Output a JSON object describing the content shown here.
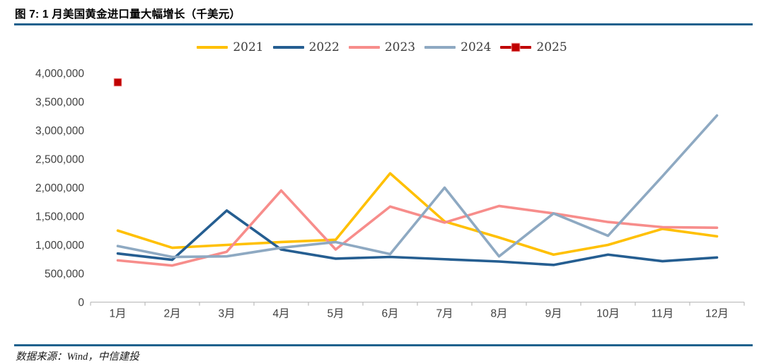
{
  "header": {
    "title": "图 7: 1 月美国黄金进口量大幅增长（千美元）"
  },
  "footer": {
    "source": "数据来源：Wind，中信建投"
  },
  "colors": {
    "rule_blue": "#1F618D",
    "axis_line": "#BFBFBF",
    "axis_text": "#404040"
  },
  "chart_data": {
    "type": "line",
    "title": "图 7: 1 月美国黄金进口量大幅增长（千美元）",
    "unit": "千美元",
    "grid": false,
    "legend_position": "top",
    "xlabel": "",
    "ylabel": "",
    "ylim": [
      0,
      4000000
    ],
    "y_tick_step": 500000,
    "y_tick_labels": [
      "0",
      "500,000",
      "1,000,000",
      "1,500,000",
      "2,000,000",
      "2,500,000",
      "3,000,000",
      "3,500,000",
      "4,000,000"
    ],
    "categories": [
      "1月",
      "2月",
      "3月",
      "4月",
      "5月",
      "6月",
      "7月",
      "8月",
      "9月",
      "10月",
      "11月",
      "12月"
    ],
    "series": [
      {
        "name": "2021",
        "color": "#FFC000",
        "marker": "none",
        "values": [
          1250000,
          950000,
          1000000,
          1050000,
          1090000,
          2250000,
          1410000,
          1130000,
          830000,
          1000000,
          1280000,
          1150000
        ]
      },
      {
        "name": "2022",
        "color": "#255E91",
        "marker": "none",
        "values": [
          850000,
          740000,
          1600000,
          920000,
          760000,
          790000,
          750000,
          710000,
          650000,
          830000,
          715000,
          780000
        ]
      },
      {
        "name": "2023",
        "color": "#F78D8B",
        "marker": "none",
        "values": [
          730000,
          640000,
          880000,
          1950000,
          920000,
          1670000,
          1390000,
          1680000,
          1550000,
          1400000,
          1310000,
          1300000
        ]
      },
      {
        "name": "2024",
        "color": "#8EA9C2",
        "marker": "none",
        "values": [
          980000,
          790000,
          800000,
          950000,
          1050000,
          840000,
          2000000,
          800000,
          1550000,
          1160000,
          2200000,
          3260000
        ]
      },
      {
        "name": "2025",
        "color": "#C00000",
        "marker": "square",
        "values": [
          3840000,
          null,
          null,
          null,
          null,
          null,
          null,
          null,
          null,
          null,
          null,
          null
        ]
      }
    ]
  }
}
